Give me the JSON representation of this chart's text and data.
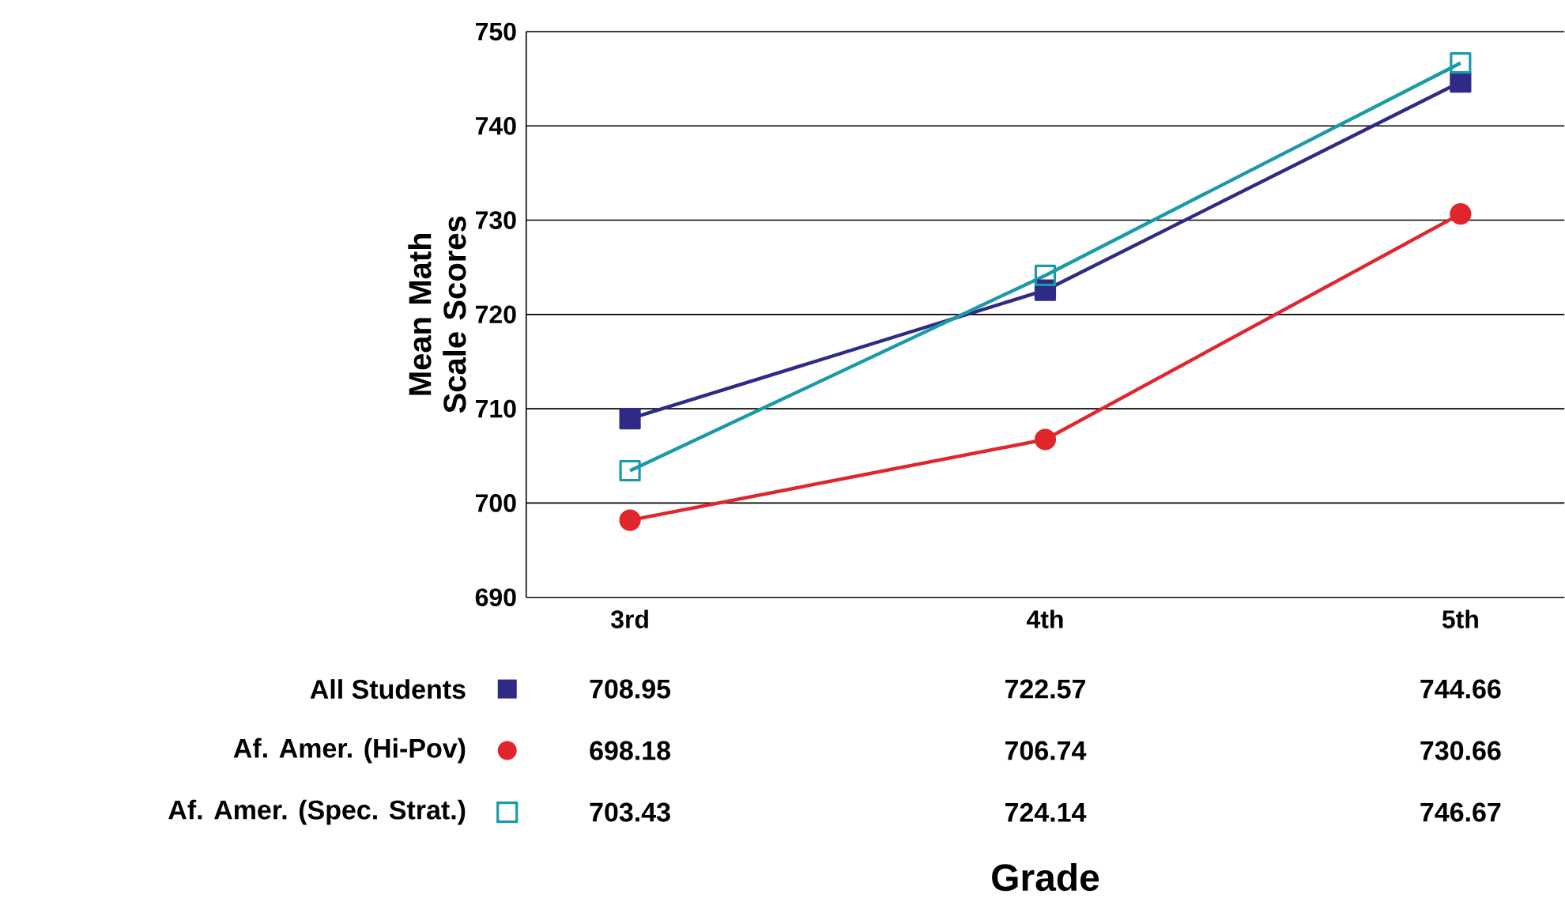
{
  "chart_data": {
    "type": "line",
    "annotations": [
      "Grade"
    ],
    "ylabel": "Mean Math Scale Scores",
    "categories": [
      "3rd",
      "4th",
      "5th"
    ],
    "series": [
      {
        "name": "All Students",
        "color": "#2e2a86",
        "marker": "square",
        "values": [
          708.95,
          722.57,
          744.66
        ]
      },
      {
        "name": "Af. Amer. (Hi-Pov)",
        "color": "#e0262d",
        "marker": "circle",
        "values": [
          698.18,
          706.74,
          730.66
        ]
      },
      {
        "name": "Af. Amer. (Spec. Strat.)",
        "color": "#1a9aa8",
        "marker": "square_open",
        "values": [
          703.43,
          724.14,
          746.67
        ]
      }
    ],
    "ylim": [
      690,
      750
    ],
    "yticks": [
      690,
      700,
      710,
      720,
      730,
      740,
      750
    ],
    "grid": "y",
    "legend": "bottom left",
    "data_labels": true,
    "line_style": "solid"
  }
}
